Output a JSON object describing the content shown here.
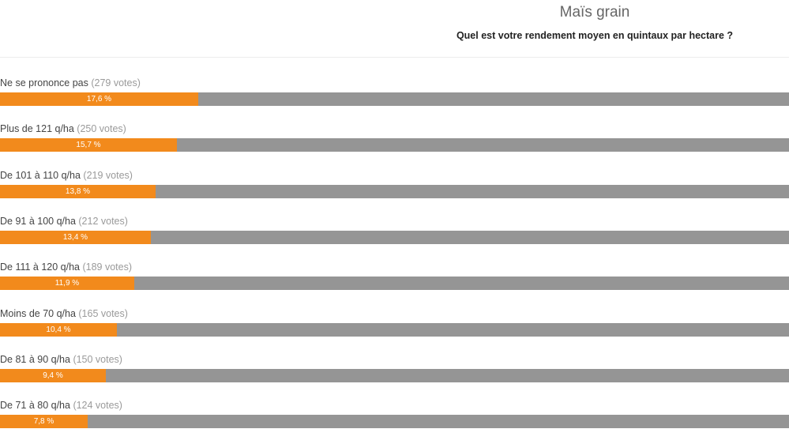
{
  "header": {
    "title": "Maïs grain",
    "subtitle": "Quel est votre rendement moyen en quintaux par hectare ?"
  },
  "colors": {
    "fill": "#f28a1c",
    "track": "#959595",
    "votes_text": "#9a9a9a"
  },
  "chart_data": {
    "type": "bar",
    "orientation": "horizontal",
    "title": "Maïs grain",
    "subtitle": "Quel est votre rendement moyen en quintaux par hectare ?",
    "xlim": [
      0,
      70
    ],
    "grid": false,
    "items": [
      {
        "label": "Ne se prononce pas",
        "votes": "(279 votes)",
        "value": 17.6,
        "value_label": "17,6 %"
      },
      {
        "label": "Plus de 121 q/ha",
        "votes": "(250 votes)",
        "value": 15.7,
        "value_label": "15,7 %"
      },
      {
        "label": "De 101 à 110 q/ha",
        "votes": "(219 votes)",
        "value": 13.8,
        "value_label": "13,8 %"
      },
      {
        "label": "De 91 à 100 q/ha",
        "votes": "(212 votes)",
        "value": 13.4,
        "value_label": "13,4 %"
      },
      {
        "label": "De 111 à 120 q/ha",
        "votes": "(189 votes)",
        "value": 11.9,
        "value_label": "11,9 %"
      },
      {
        "label": "Moins de 70 q/ha",
        "votes": "(165 votes)",
        "value": 10.4,
        "value_label": "10,4 %"
      },
      {
        "label": "De 81 à 90 q/ha",
        "votes": "(150 votes)",
        "value": 9.4,
        "value_label": "9,4 %"
      },
      {
        "label": "De 71 à 80 q/ha",
        "votes": "(124 votes)",
        "value": 7.8,
        "value_label": "7,8 %"
      }
    ]
  }
}
